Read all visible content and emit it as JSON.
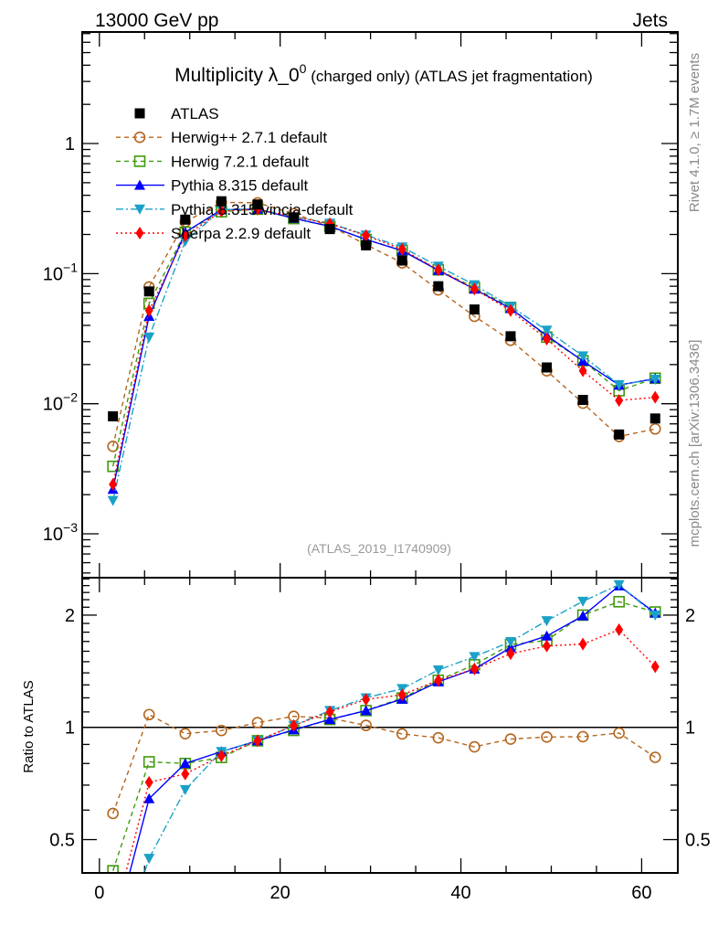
{
  "header": {
    "energy": "13000 GeV pp",
    "process": "Jets"
  },
  "side_labels": {
    "rivet": "Rivet 4.1.0, ≥ 1.7M events",
    "source": "mcplots.cern.ch [arXiv:1306.3436]"
  },
  "chart_data": {
    "type": "scatter",
    "title_main": "Multiplicity λ_0",
    "title_sup": "0",
    "title_rest": " (charged only) (ATLAS jet fragmentation)",
    "watermark": "(ATLAS_2019_I1740909)",
    "xlim": [
      -1.9,
      64
    ],
    "ylim": [
      0.00046,
      7.2
    ],
    "ylog": true,
    "ratio_ylabel": "Ratio to ATLAS",
    "ratio_ylim": [
      0.407,
      2.52
    ],
    "ratio_ylog": true,
    "x_ticks": [
      {
        "v": 0,
        "label": "0"
      },
      {
        "v": 20,
        "label": "20"
      },
      {
        "v": 40,
        "label": "40"
      },
      {
        "v": 60,
        "label": "60"
      }
    ],
    "y_ticks": [
      {
        "v": 1,
        "base": "1",
        "exp": ""
      },
      {
        "v": 0.1,
        "base": "10",
        "exp": "−1"
      },
      {
        "v": 0.01,
        "base": "10",
        "exp": "−2"
      },
      {
        "v": 0.001,
        "base": "10",
        "exp": "−3"
      }
    ],
    "ratio_ticks": [
      {
        "v": 0.5,
        "label": "0.5"
      },
      {
        "v": 1,
        "label": "1"
      },
      {
        "v": 2,
        "label": "2"
      }
    ],
    "legend_position": "top-left",
    "x": [
      1.5,
      5.5,
      9.5,
      13.5,
      17.5,
      21.5,
      25.5,
      29.5,
      33.5,
      37.5,
      41.5,
      45.5,
      49.5,
      53.5,
      57.5,
      61.5
    ],
    "data": {
      "name": "ATLAS",
      "color": "#000000",
      "marker": "square",
      "values": [
        0.008,
        0.073,
        0.26,
        0.36,
        0.34,
        0.27,
        0.22,
        0.165,
        0.126,
        0.08,
        0.053,
        0.033,
        0.019,
        0.0107,
        0.0058,
        0.0077
      ]
    },
    "series": [
      {
        "name": "Herwig++ 2.7.1 default",
        "color": "#b5651d",
        "marker": "circle-open",
        "dash": "5,4",
        "values": [
          0.0047,
          0.079,
          0.25,
          0.353,
          0.35,
          0.289,
          0.233,
          0.167,
          0.121,
          0.075,
          0.047,
          0.0307,
          0.0179,
          0.0101,
          0.0056,
          0.0064
        ]
      },
      {
        "name": "Herwig 7.2.1 default",
        "color": "#3f9a0a",
        "marker": "square-open",
        "dash": "5,4",
        "values": [
          0.0033,
          0.059,
          0.208,
          0.299,
          0.313,
          0.265,
          0.231,
          0.183,
          0.151,
          0.107,
          0.078,
          0.055,
          0.0325,
          0.0214,
          0.0126,
          0.0157
        ]
      },
      {
        "name": "Pythia 8.315 default",
        "color": "#0000ff",
        "marker": "triangle-up",
        "dash": "",
        "values": [
          0.0022,
          0.047,
          0.208,
          0.31,
          0.313,
          0.266,
          0.231,
          0.183,
          0.15,
          0.106,
          0.076,
          0.054,
          0.0334,
          0.0213,
          0.0139,
          0.0156
        ]
      },
      {
        "name": "Pythia 8.315 vincia-default",
        "color": "#1ba1c8",
        "marker": "triangle-down",
        "dash": "8,3,2,3",
        "values": [
          0.0018,
          0.0325,
          0.177,
          0.31,
          0.313,
          0.273,
          0.244,
          0.198,
          0.16,
          0.114,
          0.082,
          0.056,
          0.0367,
          0.0233,
          0.014,
          0.0154
        ]
      },
      {
        "name": "Sherpa 2.2.9 default",
        "color": "#ff0000",
        "marker": "diamond",
        "dash": "2,3",
        "values": [
          0.0024,
          0.052,
          0.195,
          0.302,
          0.313,
          0.273,
          0.242,
          0.196,
          0.154,
          0.107,
          0.076,
          0.052,
          0.0314,
          0.0179,
          0.0106,
          0.0112
        ]
      }
    ]
  }
}
